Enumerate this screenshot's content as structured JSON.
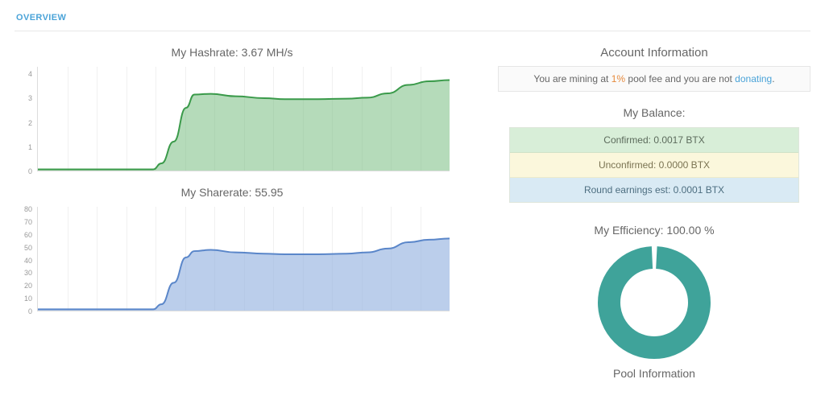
{
  "header": {
    "overview_label": "OVERVIEW"
  },
  "account": {
    "title": "Account Information",
    "info_prefix": "You are mining at ",
    "pool_fee": "1%",
    "info_mid": " pool fee and you are not ",
    "donating_link": "donating",
    "info_suffix": "."
  },
  "hashrate": {
    "title": "My Hashrate: 3.67 MH/s",
    "chart": {
      "type": "area",
      "line_color": "#3a9a4a",
      "fill_color": "rgba(120,190,130,0.55)",
      "line_width": 2,
      "background": "#ffffff",
      "grid_color": "#f0f0f0",
      "axis_color": "#dddddd",
      "ylim": [
        0,
        4.3
      ],
      "yticks": [
        0,
        1,
        2,
        3,
        4
      ],
      "xgrid_count": 14,
      "points_x": [
        0,
        0.05,
        0.1,
        0.15,
        0.2,
        0.25,
        0.28,
        0.3,
        0.33,
        0.36,
        0.38,
        0.42,
        0.48,
        0.55,
        0.6,
        0.68,
        0.75,
        0.8,
        0.85,
        0.9,
        0.95,
        1.0
      ],
      "points_y": [
        0.05,
        0.05,
        0.05,
        0.05,
        0.05,
        0.05,
        0.05,
        0.3,
        1.2,
        2.6,
        3.15,
        3.18,
        3.08,
        3.0,
        2.96,
        2.96,
        2.98,
        3.02,
        3.2,
        3.55,
        3.7,
        3.75
      ]
    }
  },
  "sharerate": {
    "title": "My Sharerate: 55.95",
    "chart": {
      "type": "area",
      "line_color": "#5a86c9",
      "fill_color": "rgba(150,180,225,0.65)",
      "line_width": 2,
      "background": "#ffffff",
      "grid_color": "#f0f0f0",
      "axis_color": "#dddddd",
      "ylim": [
        0,
        82
      ],
      "yticks": [
        0,
        10,
        20,
        30,
        40,
        50,
        60,
        70,
        80
      ],
      "xgrid_count": 14,
      "points_x": [
        0,
        0.05,
        0.1,
        0.15,
        0.2,
        0.25,
        0.28,
        0.3,
        0.33,
        0.36,
        0.38,
        0.42,
        0.48,
        0.55,
        0.6,
        0.68,
        0.75,
        0.8,
        0.85,
        0.9,
        0.95,
        1.0
      ],
      "points_y": [
        1,
        1,
        1,
        1,
        1,
        1,
        1,
        5,
        22,
        42,
        47,
        48,
        46,
        45,
        44.5,
        44.5,
        45,
        46,
        49,
        54,
        56,
        57
      ]
    }
  },
  "balance": {
    "title": "My Balance:",
    "confirmed": "Confirmed: 0.0017 BTX",
    "unconfirmed": "Unconfirmed: 0.0000 BTX",
    "round": "Round earnings est: 0.0001 BTX",
    "colors": {
      "confirmed": "#d8eed8",
      "unconfirmed": "#fbf7dc",
      "round": "#d9eaf4"
    }
  },
  "efficiency": {
    "title": "My Efficiency: 100.00 %",
    "donut": {
      "percent": 100,
      "size": 140,
      "thickness": 28,
      "color": "#3fa39a",
      "gap_deg": 6,
      "track_color": "#ffffff"
    }
  },
  "pool": {
    "title": "Pool Information"
  }
}
